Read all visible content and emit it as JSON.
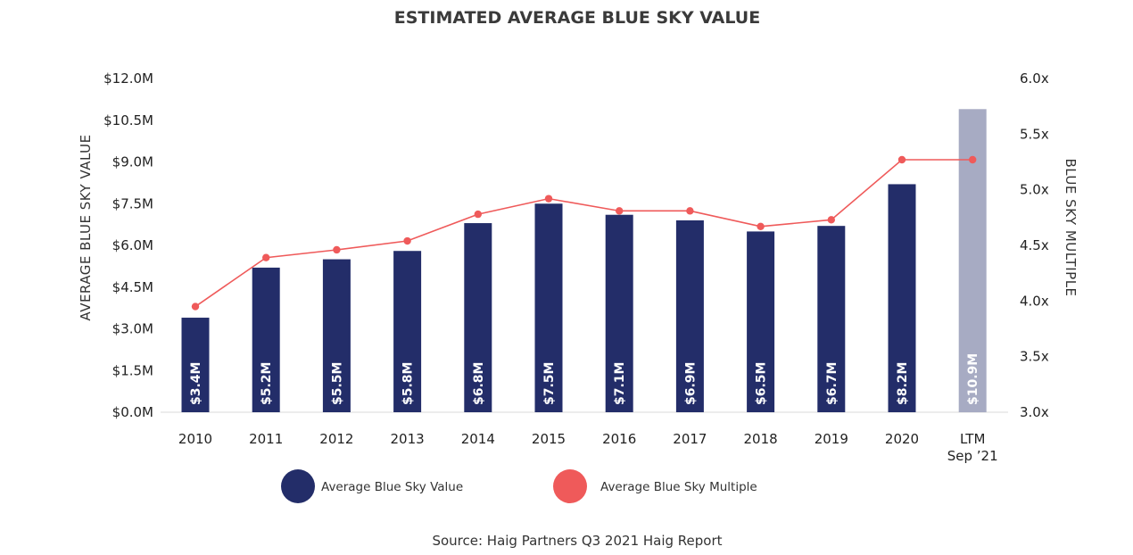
{
  "chart_data": {
    "type": "bar+line",
    "title": "ESTIMATED AVERAGE BLUE SKY VALUE",
    "categories": [
      "2010",
      "2011",
      "2012",
      "2013",
      "2014",
      "2015",
      "2016",
      "2017",
      "2018",
      "2019",
      "2020",
      "LTM\nSep ’21"
    ],
    "y_left": {
      "label": "AVERAGE BLUE SKY VALUE",
      "min": 0,
      "max": 12,
      "ticks": [
        0,
        1.5,
        3,
        4.5,
        6,
        7.5,
        9,
        10.5,
        12
      ],
      "tick_labels": [
        "$0.0M",
        "$1.5M",
        "$3.0M",
        "$4.5M",
        "$6.0M",
        "$7.5M",
        "$9.0M",
        "$10.5M",
        "$12.0M"
      ]
    },
    "y_right": {
      "label": "BLUE SKY MULTIPLE",
      "min": 3.0,
      "max": 6.0,
      "ticks": [
        3.0,
        3.5,
        4.0,
        4.5,
        5.0,
        5.5,
        6.0
      ],
      "tick_labels": [
        "3.0x",
        "3.5x",
        "4.0x",
        "4.5x",
        "5.0x",
        "5.5x",
        "6.0x"
      ]
    },
    "series": [
      {
        "name": "Average Blue Sky Value",
        "type": "bar",
        "axis": "left",
        "values": [
          3.4,
          5.2,
          5.5,
          5.8,
          6.8,
          7.5,
          7.1,
          6.9,
          6.5,
          6.7,
          8.2,
          10.9
        ],
        "labels": [
          "$3.4M",
          "$5.2M",
          "$5.5M",
          "$5.8M",
          "$6.8M",
          "$7.5M",
          "$7.1M",
          "$6.9M",
          "$6.5M",
          "$6.7M",
          "$8.2M",
          "$10.9M"
        ],
        "color": "#232d69",
        "highlight_color": "#a7abc3",
        "highlight_index": 11
      },
      {
        "name": "Average Blue Sky Multiple",
        "type": "line",
        "axis": "right",
        "values": [
          3.95,
          4.39,
          4.46,
          4.54,
          4.78,
          4.92,
          4.81,
          4.81,
          4.67,
          4.73,
          5.27,
          5.27
        ],
        "color": "#ef5a5a"
      }
    ],
    "legend_position": "bottom",
    "grid": false,
    "source": "Source: Haig Partners Q3 2021 Haig Report"
  }
}
